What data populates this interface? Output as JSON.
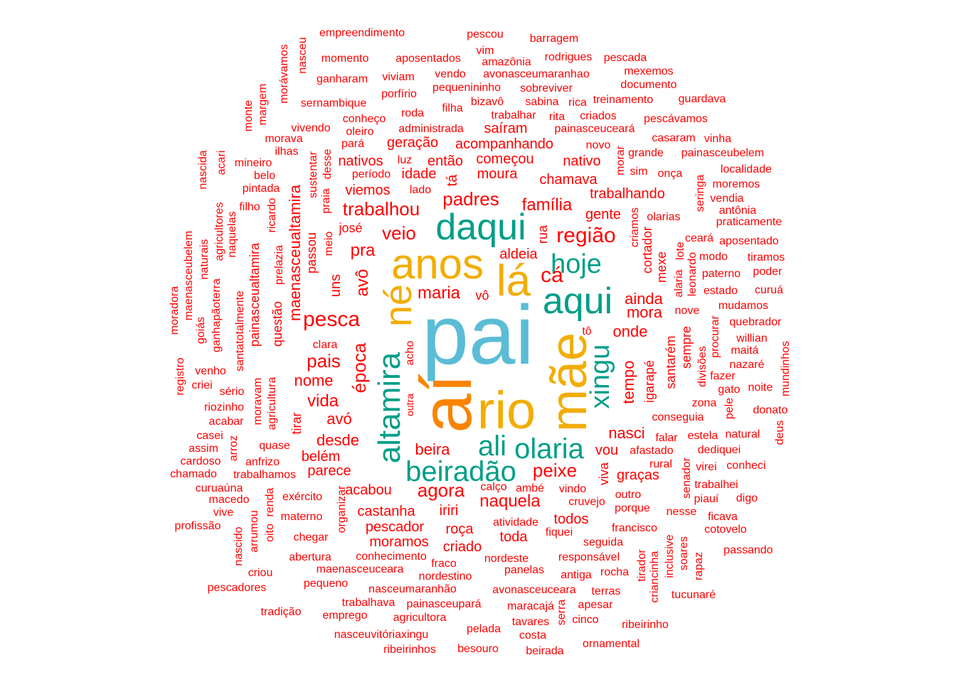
{
  "palette": {
    "red": "#ff0000",
    "teal": "#009e88",
    "blue": "#5bbcd6",
    "gold": "#f2ad00",
    "orange": "#f98400"
  },
  "words": [
    {
      "text": "pai",
      "color": "blue"
    },
    {
      "text": "aí",
      "color": "orange"
    },
    {
      "text": "rio",
      "color": "gold"
    },
    {
      "text": "mãe",
      "color": "gold"
    },
    {
      "text": "anos",
      "color": "gold"
    },
    {
      "text": "lá",
      "color": "gold"
    },
    {
      "text": "né",
      "color": "gold"
    },
    {
      "text": "daqui",
      "color": "teal"
    },
    {
      "text": "aqui",
      "color": "teal"
    },
    {
      "text": "altamira",
      "color": "teal"
    },
    {
      "text": "hoje",
      "color": "teal"
    },
    {
      "text": "xingu",
      "color": "teal"
    },
    {
      "text": "ali",
      "color": "teal"
    },
    {
      "text": "olaria",
      "color": "teal"
    },
    {
      "text": "beiradão",
      "color": "teal"
    },
    {
      "text": "região",
      "color": "red"
    },
    {
      "text": "pesca",
      "color": "red"
    },
    {
      "text": "cá",
      "color": "red"
    },
    {
      "text": "padres",
      "color": "red"
    },
    {
      "text": "trabalhou",
      "color": "red"
    },
    {
      "text": "veio",
      "color": "red"
    },
    {
      "text": "pra",
      "color": "red"
    },
    {
      "text": "família",
      "color": "red"
    },
    {
      "text": "época",
      "color": "red"
    },
    {
      "text": "pais",
      "color": "red"
    },
    {
      "text": "avô",
      "color": "red"
    },
    {
      "text": "maria",
      "color": "red"
    },
    {
      "text": "agora",
      "color": "red"
    },
    {
      "text": "peixe",
      "color": "red"
    },
    {
      "text": "beira",
      "color": "red"
    },
    {
      "text": "naquela",
      "color": "red"
    },
    {
      "text": "nasci",
      "color": "red"
    },
    {
      "text": "vida",
      "color": "red"
    },
    {
      "text": "nome",
      "color": "red"
    },
    {
      "text": "desde",
      "color": "red"
    },
    {
      "text": "avó",
      "color": "red"
    },
    {
      "text": "tempo",
      "color": "red"
    },
    {
      "text": "onde",
      "color": "red"
    },
    {
      "text": "mora",
      "color": "red"
    },
    {
      "text": "ainda",
      "color": "red"
    },
    {
      "text": "aldeia",
      "color": "red"
    },
    {
      "text": "maenasceualtamira",
      "color": "red"
    },
    {
      "text": "moura",
      "color": "red"
    },
    {
      "text": "chamava",
      "color": "red"
    },
    {
      "text": "trabalhando",
      "color": "red"
    },
    {
      "text": "gente",
      "color": "red"
    },
    {
      "text": "começou",
      "color": "red"
    },
    {
      "text": "nativo",
      "color": "red"
    },
    {
      "text": "então",
      "color": "red"
    },
    {
      "text": "nativos",
      "color": "red"
    },
    {
      "text": "geração",
      "color": "red"
    },
    {
      "text": "acompanhando",
      "color": "red"
    },
    {
      "text": "viemos",
      "color": "red"
    },
    {
      "text": "idade",
      "color": "red"
    },
    {
      "text": "tá",
      "color": "red"
    },
    {
      "text": "saíram",
      "color": "red"
    },
    {
      "text": "uns",
      "color": "red"
    },
    {
      "text": "vô",
      "color": "red"
    },
    {
      "text": "josé",
      "color": "red"
    },
    {
      "text": "passou",
      "color": "red"
    },
    {
      "text": "castanha",
      "color": "red"
    },
    {
      "text": "pescador",
      "color": "red"
    },
    {
      "text": "moramos",
      "color": "red"
    },
    {
      "text": "roça",
      "color": "red"
    },
    {
      "text": "criado",
      "color": "red"
    },
    {
      "text": "toda",
      "color": "red"
    },
    {
      "text": "todos",
      "color": "red"
    },
    {
      "text": "iriri",
      "color": "red"
    },
    {
      "text": "acabou",
      "color": "red"
    },
    {
      "text": "parece",
      "color": "red"
    },
    {
      "text": "belém",
      "color": "red"
    },
    {
      "text": "vou",
      "color": "red"
    },
    {
      "text": "graças",
      "color": "red"
    },
    {
      "text": "viva",
      "color": "red"
    },
    {
      "text": "santarém",
      "color": "red"
    },
    {
      "text": "igarapé",
      "color": "red"
    },
    {
      "text": "sempre",
      "color": "red"
    },
    {
      "text": "cortador",
      "color": "red"
    },
    {
      "text": "mexe",
      "color": "red"
    },
    {
      "text": "rua",
      "color": "red"
    },
    {
      "text": "tirar",
      "color": "red"
    },
    {
      "text": "acho",
      "color": "red"
    },
    {
      "text": "outra",
      "color": "red"
    },
    {
      "text": "clara",
      "color": "red"
    },
    {
      "text": "tô",
      "color": "red"
    },
    {
      "text": "questão",
      "color": "red"
    },
    {
      "text": "painasceualtamira",
      "color": "red"
    },
    {
      "text": "empreendimento",
      "color": "red"
    },
    {
      "text": "pescou",
      "color": "red"
    },
    {
      "text": "barragem",
      "color": "red"
    },
    {
      "text": "vim",
      "color": "red"
    },
    {
      "text": "momento",
      "color": "red"
    },
    {
      "text": "aposentados",
      "color": "red"
    },
    {
      "text": "amazônia",
      "color": "red"
    },
    {
      "text": "rodrigues",
      "color": "red"
    },
    {
      "text": "pescada",
      "color": "red"
    },
    {
      "text": "ganharam",
      "color": "red"
    },
    {
      "text": "viviam",
      "color": "red"
    },
    {
      "text": "vendo",
      "color": "red"
    },
    {
      "text": "avonasceumaranhao",
      "color": "red"
    },
    {
      "text": "mexemos",
      "color": "red"
    },
    {
      "text": "pequenininho",
      "color": "red"
    },
    {
      "text": "sobreviver",
      "color": "red"
    },
    {
      "text": "documento",
      "color": "red"
    },
    {
      "text": "sernambique",
      "color": "red"
    },
    {
      "text": "porfírio",
      "color": "red"
    },
    {
      "text": "bizavô",
      "color": "red"
    },
    {
      "text": "sabina",
      "color": "red"
    },
    {
      "text": "rica",
      "color": "red"
    },
    {
      "text": "treinamento",
      "color": "red"
    },
    {
      "text": "guardava",
      "color": "red"
    },
    {
      "text": "filha",
      "color": "red"
    },
    {
      "text": "conheço",
      "color": "red"
    },
    {
      "text": "roda",
      "color": "red"
    },
    {
      "text": "trabalhar",
      "color": "red"
    },
    {
      "text": "rita",
      "color": "red"
    },
    {
      "text": "criados",
      "color": "red"
    },
    {
      "text": "pescávamos",
      "color": "red"
    },
    {
      "text": "vivendo",
      "color": "red"
    },
    {
      "text": "oleiro",
      "color": "red"
    },
    {
      "text": "administrada",
      "color": "red"
    },
    {
      "text": "painasceuceará",
      "color": "red"
    },
    {
      "text": "morava",
      "color": "red"
    },
    {
      "text": "pará",
      "color": "red"
    },
    {
      "text": "casaram",
      "color": "red"
    },
    {
      "text": "vinha",
      "color": "red"
    },
    {
      "text": "novo",
      "color": "red"
    },
    {
      "text": "grande",
      "color": "red"
    },
    {
      "text": "painasceubelem",
      "color": "red"
    },
    {
      "text": "ilhas",
      "color": "red"
    },
    {
      "text": "mineiro",
      "color": "red"
    },
    {
      "text": "luz",
      "color": "red"
    },
    {
      "text": "período",
      "color": "red"
    },
    {
      "text": "sim",
      "color": "red"
    },
    {
      "text": "onça",
      "color": "red"
    },
    {
      "text": "localidade",
      "color": "red"
    },
    {
      "text": "belo",
      "color": "red"
    },
    {
      "text": "moremos",
      "color": "red"
    },
    {
      "text": "pintada",
      "color": "red"
    },
    {
      "text": "lado",
      "color": "red"
    },
    {
      "text": "vendia",
      "color": "red"
    },
    {
      "text": "filho",
      "color": "red"
    },
    {
      "text": "antônia",
      "color": "red"
    },
    {
      "text": "olarias",
      "color": "red"
    },
    {
      "text": "praticamente",
      "color": "red"
    },
    {
      "text": "ceará",
      "color": "red"
    },
    {
      "text": "aposentado",
      "color": "red"
    },
    {
      "text": "modo",
      "color": "red"
    },
    {
      "text": "tiramos",
      "color": "red"
    },
    {
      "text": "paterno",
      "color": "red"
    },
    {
      "text": "poder",
      "color": "red"
    },
    {
      "text": "estado",
      "color": "red"
    },
    {
      "text": "curuá",
      "color": "red"
    },
    {
      "text": "mudamos",
      "color": "red"
    },
    {
      "text": "nove",
      "color": "red"
    },
    {
      "text": "quebrador",
      "color": "red"
    },
    {
      "text": "willian",
      "color": "red"
    },
    {
      "text": "maitá",
      "color": "red"
    },
    {
      "text": "nazaré",
      "color": "red"
    },
    {
      "text": "fazer",
      "color": "red"
    },
    {
      "text": "gato",
      "color": "red"
    },
    {
      "text": "noite",
      "color": "red"
    },
    {
      "text": "zona",
      "color": "red"
    },
    {
      "text": "donato",
      "color": "red"
    },
    {
      "text": "conseguia",
      "color": "red"
    },
    {
      "text": "estela",
      "color": "red"
    },
    {
      "text": "natural",
      "color": "red"
    },
    {
      "text": "falar",
      "color": "red"
    },
    {
      "text": "afastado",
      "color": "red"
    },
    {
      "text": "dediquei",
      "color": "red"
    },
    {
      "text": "rural",
      "color": "red"
    },
    {
      "text": "virei",
      "color": "red"
    },
    {
      "text": "conheci",
      "color": "red"
    },
    {
      "text": "outro",
      "color": "red"
    },
    {
      "text": "trabalhei",
      "color": "red"
    },
    {
      "text": "porque",
      "color": "red"
    },
    {
      "text": "piauí",
      "color": "red"
    },
    {
      "text": "digo",
      "color": "red"
    },
    {
      "text": "nesse",
      "color": "red"
    },
    {
      "text": "ficava",
      "color": "red"
    },
    {
      "text": "francisco",
      "color": "red"
    },
    {
      "text": "cotovelo",
      "color": "red"
    },
    {
      "text": "seguida",
      "color": "red"
    },
    {
      "text": "passando",
      "color": "red"
    },
    {
      "text": "rocha",
      "color": "red"
    },
    {
      "text": "tucunaré",
      "color": "red"
    },
    {
      "text": "terras",
      "color": "red"
    },
    {
      "text": "apesar",
      "color": "red"
    },
    {
      "text": "ribeirinho",
      "color": "red"
    },
    {
      "text": "cinco",
      "color": "red"
    },
    {
      "text": "ornamental",
      "color": "red"
    },
    {
      "text": "beirada",
      "color": "red"
    },
    {
      "text": "costa",
      "color": "red"
    },
    {
      "text": "tavares",
      "color": "red"
    },
    {
      "text": "maracajá",
      "color": "red"
    },
    {
      "text": "pelada",
      "color": "red"
    },
    {
      "text": "besouro",
      "color": "red"
    },
    {
      "text": "ribeirinhos",
      "color": "red"
    },
    {
      "text": "nasceuvitóriaxingu",
      "color": "red"
    },
    {
      "text": "agricultora",
      "color": "red"
    },
    {
      "text": "emprego",
      "color": "red"
    },
    {
      "text": "tradição",
      "color": "red"
    },
    {
      "text": "trabalhava",
      "color": "red"
    },
    {
      "text": "painasceupará",
      "color": "red"
    },
    {
      "text": "pequeno",
      "color": "red"
    },
    {
      "text": "nasceumaranhão",
      "color": "red"
    },
    {
      "text": "avonasceuceara",
      "color": "red"
    },
    {
      "text": "pescadores",
      "color": "red"
    },
    {
      "text": "criou",
      "color": "red"
    },
    {
      "text": "maenasceuceara",
      "color": "red"
    },
    {
      "text": "nordestino",
      "color": "red"
    },
    {
      "text": "fraco",
      "color": "red"
    },
    {
      "text": "panelas",
      "color": "red"
    },
    {
      "text": "antiga",
      "color": "red"
    },
    {
      "text": "abertura",
      "color": "red"
    },
    {
      "text": "conhecimento",
      "color": "red"
    },
    {
      "text": "nordeste",
      "color": "red"
    },
    {
      "text": "responsável",
      "color": "red"
    },
    {
      "text": "chegar",
      "color": "red"
    },
    {
      "text": "atividade",
      "color": "red"
    },
    {
      "text": "fiquei",
      "color": "red"
    },
    {
      "text": "materno",
      "color": "red"
    },
    {
      "text": "cruvejo",
      "color": "red"
    },
    {
      "text": "vindo",
      "color": "red"
    },
    {
      "text": "calço",
      "color": "red"
    },
    {
      "text": "ambé",
      "color": "red"
    },
    {
      "text": "exército",
      "color": "red"
    },
    {
      "text": "profissão",
      "color": "red"
    },
    {
      "text": "vive",
      "color": "red"
    },
    {
      "text": "macedo",
      "color": "red"
    },
    {
      "text": "curuaúna",
      "color": "red"
    },
    {
      "text": "chamado",
      "color": "red"
    },
    {
      "text": "trabalhamos",
      "color": "red"
    },
    {
      "text": "cardoso",
      "color": "red"
    },
    {
      "text": "anfrizo",
      "color": "red"
    },
    {
      "text": "assim",
      "color": "red"
    },
    {
      "text": "quase",
      "color": "red"
    },
    {
      "text": "casei",
      "color": "red"
    },
    {
      "text": "acabar",
      "color": "red"
    },
    {
      "text": "riozinho",
      "color": "red"
    },
    {
      "text": "sério",
      "color": "red"
    },
    {
      "text": "criei",
      "color": "red"
    },
    {
      "text": "venho",
      "color": "red"
    },
    {
      "text": "registro",
      "color": "red"
    },
    {
      "text": "moradora",
      "color": "red"
    },
    {
      "text": "maenasceubelem",
      "color": "red"
    },
    {
      "text": "goiás",
      "color": "red"
    },
    {
      "text": "naturais",
      "color": "red"
    },
    {
      "text": "ganhapãoterra",
      "color": "red"
    },
    {
      "text": "agricultores",
      "color": "red"
    },
    {
      "text": "naquelas",
      "color": "red"
    },
    {
      "text": "santatotalmente",
      "color": "red"
    },
    {
      "text": "prelazia",
      "color": "red"
    },
    {
      "text": "ricardo",
      "color": "red"
    },
    {
      "text": "meio",
      "color": "red"
    },
    {
      "text": "praia",
      "color": "red"
    },
    {
      "text": "sustentar",
      "color": "red"
    },
    {
      "text": "desse",
      "color": "red"
    },
    {
      "text": "nascida",
      "color": "red"
    },
    {
      "text": "acari",
      "color": "red"
    },
    {
      "text": "monte",
      "color": "red"
    },
    {
      "text": "margem",
      "color": "red"
    },
    {
      "text": "morávamos",
      "color": "red"
    },
    {
      "text": "nasceu",
      "color": "red"
    },
    {
      "text": "moravam",
      "color": "red"
    },
    {
      "text": "agricultura",
      "color": "red"
    },
    {
      "text": "arroz",
      "color": "red"
    },
    {
      "text": "nascido",
      "color": "red"
    },
    {
      "text": "arrumou",
      "color": "red"
    },
    {
      "text": "oito",
      "color": "red"
    },
    {
      "text": "renda",
      "color": "red"
    },
    {
      "text": "organizar",
      "color": "red"
    },
    {
      "text": "serra",
      "color": "red"
    },
    {
      "text": "criancinha",
      "color": "red"
    },
    {
      "text": "tirador",
      "color": "red"
    },
    {
      "text": "inclusive",
      "color": "red"
    },
    {
      "text": "soares",
      "color": "red"
    },
    {
      "text": "rapaz",
      "color": "red"
    },
    {
      "text": "senador",
      "color": "red"
    },
    {
      "text": "deus",
      "color": "red"
    },
    {
      "text": "mundinhos",
      "color": "red"
    },
    {
      "text": "pele",
      "color": "red"
    },
    {
      "text": "divisões",
      "color": "red"
    },
    {
      "text": "procurar",
      "color": "red"
    },
    {
      "text": "alaria",
      "color": "red"
    },
    {
      "text": "lote",
      "color": "red"
    },
    {
      "text": "leonardo",
      "color": "red"
    },
    {
      "text": "seringa",
      "color": "red"
    },
    {
      "text": "criamos",
      "color": "red"
    },
    {
      "text": "morar",
      "color": "red"
    }
  ]
}
